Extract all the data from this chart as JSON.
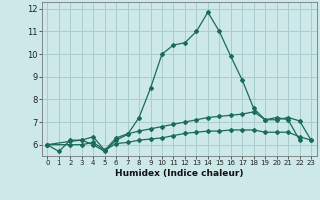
{
  "title": "",
  "xlabel": "Humidex (Indice chaleur)",
  "ylabel": "",
  "bg_color": "#cce8e8",
  "grid_color": "#aacccc",
  "line_color": "#1a6b5a",
  "xmin": -0.5,
  "xmax": 23.5,
  "ymin": 5.5,
  "ymax": 12.3,
  "yticks": [
    6,
    7,
    8,
    9,
    10,
    11,
    12
  ],
  "xticks": [
    0,
    1,
    2,
    3,
    4,
    5,
    6,
    7,
    8,
    9,
    10,
    11,
    12,
    13,
    14,
    15,
    16,
    17,
    18,
    19,
    20,
    21,
    22,
    23
  ],
  "line1_x": [
    0,
    1,
    2,
    3,
    4,
    5,
    6,
    7,
    8,
    9,
    10,
    11,
    12,
    13,
    14,
    15,
    16,
    17,
    18,
    19,
    20,
    21,
    22
  ],
  "line1_y": [
    6.0,
    5.7,
    6.2,
    6.2,
    6.0,
    5.7,
    6.2,
    6.45,
    7.2,
    8.5,
    10.0,
    10.4,
    10.5,
    11.0,
    11.85,
    11.0,
    9.9,
    8.85,
    7.6,
    7.1,
    7.2,
    7.1,
    6.2
  ],
  "line2_x": [
    0,
    2,
    3,
    4,
    5,
    6,
    7,
    8,
    9,
    10,
    11,
    12,
    13,
    14,
    15,
    16,
    17,
    18,
    19,
    20,
    21,
    22,
    23
  ],
  "line2_y": [
    6.0,
    6.15,
    6.2,
    6.35,
    5.75,
    6.3,
    6.48,
    6.6,
    6.7,
    6.8,
    6.9,
    7.0,
    7.1,
    7.2,
    7.25,
    7.3,
    7.35,
    7.45,
    7.1,
    7.1,
    7.2,
    7.05,
    6.2
  ],
  "line3_x": [
    0,
    2,
    3,
    4,
    5,
    6,
    7,
    8,
    9,
    10,
    11,
    12,
    13,
    14,
    15,
    16,
    17,
    18,
    19,
    20,
    21,
    22,
    23
  ],
  "line3_y": [
    6.0,
    6.0,
    6.0,
    6.1,
    5.75,
    6.05,
    6.1,
    6.2,
    6.25,
    6.3,
    6.4,
    6.5,
    6.55,
    6.6,
    6.6,
    6.65,
    6.65,
    6.65,
    6.55,
    6.55,
    6.55,
    6.35,
    6.2
  ]
}
